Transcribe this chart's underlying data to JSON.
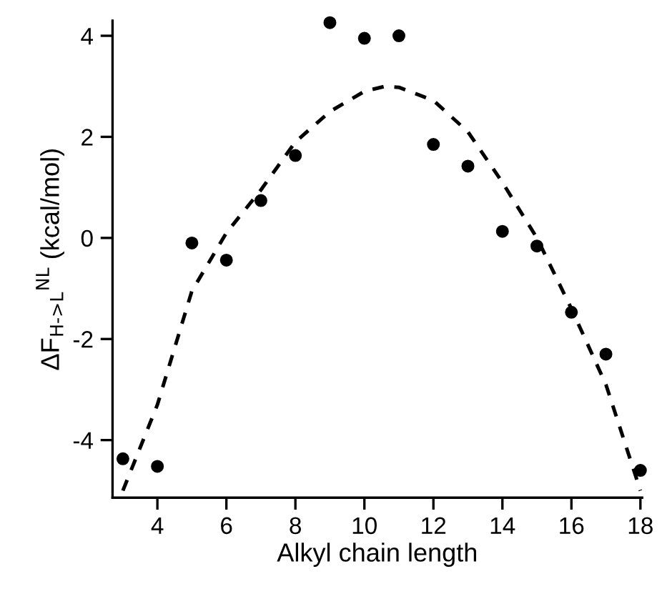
{
  "chart_data": {
    "type": "scatter",
    "xlabel": "Alkyl chain length",
    "ylabel": "ΔF$_{H->L}$$^{NL}$ (kcal/mol)",
    "x": [
      3,
      4,
      5,
      6,
      7,
      8,
      9,
      10,
      11,
      12,
      13,
      14,
      15,
      16,
      17,
      18
    ],
    "series": [
      {
        "color": "#000000",
        "marker": "circle",
        "values": [
          -4.37,
          -4.52,
          -0.1,
          -0.44,
          0.74,
          1.63,
          4.26,
          3.95,
          4.0,
          1.85,
          1.42,
          0.13,
          -0.16,
          -1.47,
          -2.3,
          -4.6
        ]
      },
      {
        "type": "line",
        "color": "#000000",
        "line_style": "dashed",
        "marker": "none",
        "x": [
          3,
          4,
          5,
          6,
          7,
          8,
          9,
          10,
          10.6,
          11,
          12,
          13,
          14,
          15,
          16,
          17,
          18
        ],
        "values": [
          -5.0,
          -3.3,
          -1.05,
          0.1,
          0.95,
          1.9,
          2.5,
          2.9,
          3.0,
          2.98,
          2.72,
          2.1,
          1.1,
          0.0,
          -1.4,
          -2.9,
          -5.0
        ]
      }
    ],
    "xlim": [
      2.7,
      18.05
    ],
    "ylim": [
      -5.14,
      4.3
    ],
    "xticks": [
      4,
      6,
      8,
      10,
      12,
      14,
      16,
      18
    ],
    "yticks": [
      -4,
      -2,
      0,
      2,
      4
    ],
    "grid": false,
    "legend": false
  }
}
